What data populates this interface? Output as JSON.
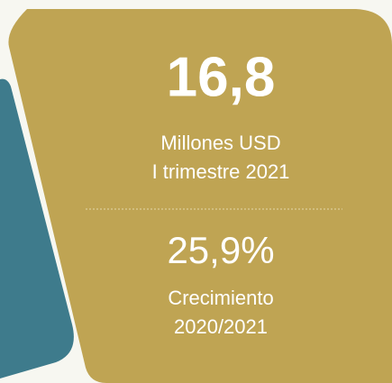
{
  "main_figure": "16,8",
  "main_caption": [
    "Millones USD",
    "I trimestre 2021"
  ],
  "second_figure": "25,9%",
  "second_caption": [
    "Crecimiento",
    "2020/2021"
  ]
}
